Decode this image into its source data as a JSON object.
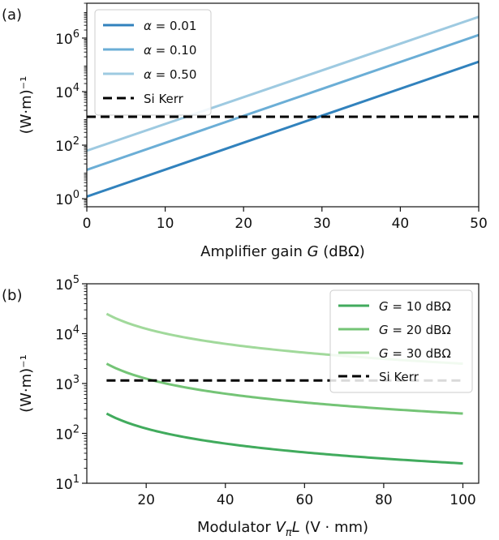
{
  "chart_data": [
    {
      "panel_label": "(a)",
      "type": "line",
      "xlabel": "Amplifier gain G (dBΩ)",
      "ylabel": "(W·m)⁻¹",
      "x_scale": "linear",
      "y_scale": "log",
      "xlim": [
        0,
        50
      ],
      "ylim": [
        0.5,
        20000000
      ],
      "x_ticks": [
        0,
        10,
        20,
        30,
        40,
        50
      ],
      "y_ticks": [
        1,
        100,
        10000,
        1000000
      ],
      "grid": false,
      "legend_position": "top-left",
      "series": [
        {
          "name": "α = 0.01",
          "color": "#3182bd",
          "style": "solid",
          "x": [
            0,
            50
          ],
          "y": [
            1.2,
            130000
          ]
        },
        {
          "name": "α = 0.10",
          "color": "#6baed6",
          "style": "solid",
          "x": [
            0,
            50
          ],
          "y": [
            12,
            1300000
          ]
        },
        {
          "name": "α = 0.50",
          "color": "#9ecae1",
          "style": "solid",
          "x": [
            0,
            50
          ],
          "y": [
            62,
            6200000
          ]
        },
        {
          "name": "Si Kerr",
          "color": "#000000",
          "style": "dashed",
          "x": [
            0,
            50
          ],
          "y": [
            1150,
            1150
          ]
        }
      ]
    },
    {
      "panel_label": "(b)",
      "type": "line",
      "xlabel": "Modulator VπL (V · mm)",
      "ylabel": "(W·m)⁻¹",
      "x_scale": "linear",
      "y_scale": "log",
      "xlim": [
        5,
        104
      ],
      "ylim": [
        10,
        100000
      ],
      "x_ticks": [
        20,
        40,
        60,
        80,
        100
      ],
      "y_ticks": [
        10,
        100,
        1000,
        10000,
        100000
      ],
      "grid": false,
      "legend_position": "top-right",
      "series": [
        {
          "name": "G = 10 dBΩ",
          "color": "#41ab5d",
          "style": "solid",
          "x": [
            10,
            15,
            20,
            30,
            40,
            50,
            60,
            70,
            80,
            90,
            100
          ],
          "y": [
            250,
            167,
            125,
            83,
            62,
            50,
            42,
            36,
            31,
            28,
            25
          ]
        },
        {
          "name": "G = 20 dBΩ",
          "color": "#74c476",
          "style": "solid",
          "x": [
            10,
            15,
            20,
            30,
            40,
            50,
            60,
            70,
            80,
            90,
            100
          ],
          "y": [
            2500,
            1667,
            1250,
            833,
            625,
            500,
            417,
            357,
            312,
            278,
            250
          ]
        },
        {
          "name": "G = 30 dBΩ",
          "color": "#a1d99b",
          "style": "solid",
          "x": [
            10,
            15,
            20,
            30,
            40,
            50,
            60,
            70,
            80,
            90,
            100
          ],
          "y": [
            25000,
            16667,
            12500,
            8333,
            6250,
            5000,
            4167,
            3571,
            3125,
            2778,
            2500
          ]
        },
        {
          "name": "Si Kerr",
          "color": "#000000",
          "style": "dashed",
          "x": [
            10,
            100
          ],
          "y": [
            1150,
            1150
          ]
        }
      ]
    }
  ]
}
